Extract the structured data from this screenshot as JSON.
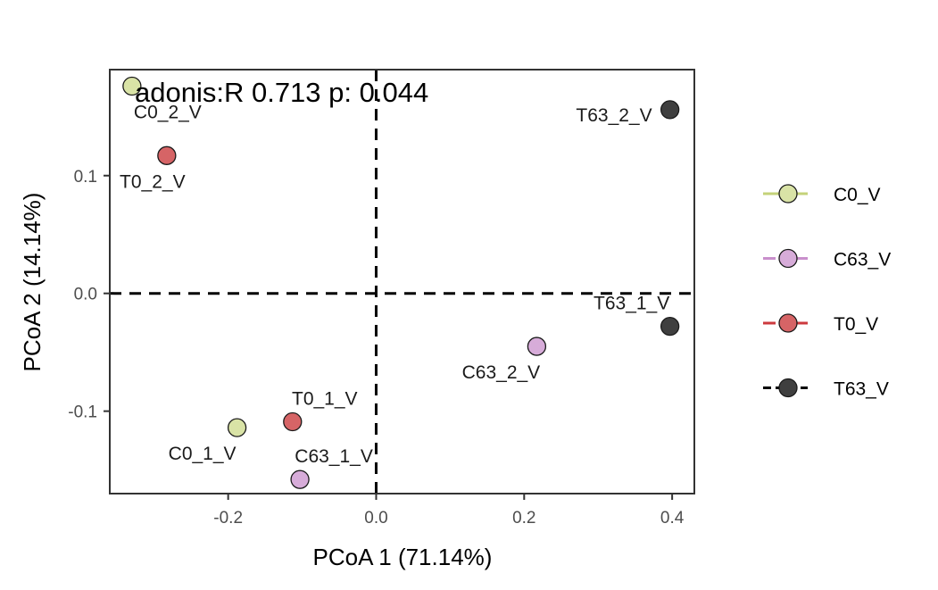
{
  "chart_data": {
    "type": "scatter",
    "xlabel": "PCoA 1 (71.14%)",
    "ylabel": "PCoA 2 (14.14%)",
    "annotation": "adonis:R 0.713 p: 0.044",
    "xlim": [
      -0.36,
      0.43
    ],
    "ylim": [
      -0.17,
      0.19
    ],
    "x_ticks": [
      -0.2,
      0.0,
      0.2,
      0.4
    ],
    "x_tick_labels": [
      "-0.2",
      "0.0",
      "0.2",
      "0.4"
    ],
    "y_ticks": [
      -0.1,
      0.0,
      0.1
    ],
    "y_tick_labels": [
      "-0.1",
      "0.0",
      "0.1"
    ],
    "reference_lines": {
      "x": 0,
      "y": 0,
      "style": "dashed"
    },
    "grid": false,
    "legend_position": "right",
    "series": [
      {
        "name": "C0_V",
        "color": "#d9e3a6",
        "points": [
          {
            "label": "C0_2_V",
            "x": -0.33,
            "y": 0.176
          },
          {
            "label": "C0_1_V",
            "x": -0.188,
            "y": -0.114
          }
        ]
      },
      {
        "name": "C63_V",
        "color": "#d7acd9",
        "points": [
          {
            "label": "C63_2_V",
            "x": 0.217,
            "y": -0.045
          },
          {
            "label": "C63_1_V",
            "x": -0.103,
            "y": -0.158
          }
        ]
      },
      {
        "name": "T0_V",
        "color": "#d66466",
        "points": [
          {
            "label": "T0_2_V",
            "x": -0.283,
            "y": 0.117
          },
          {
            "label": "T0_1_V",
            "x": -0.113,
            "y": -0.109
          }
        ]
      },
      {
        "name": "T63_V",
        "color": "#3f3f3f",
        "points": [
          {
            "label": "T63_2_V",
            "x": 0.397,
            "y": 0.156
          },
          {
            "label": "T63_1_V",
            "x": 0.397,
            "y": -0.028
          }
        ]
      }
    ],
    "legend_line_colors": {
      "C0_V": "#c4d279",
      "C63_V": "#c98fcc",
      "T0_V": "#cc3a3e",
      "T63_V": "#000000"
    }
  }
}
